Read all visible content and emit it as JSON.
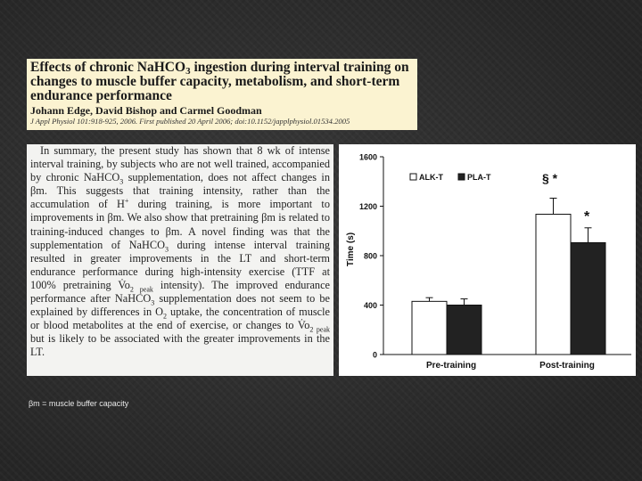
{
  "header": {
    "title_part1": "Effects of chronic NaHCO",
    "title_sub": "3",
    "title_part2": " ingestion during interval training on changes to muscle buffer capacity, metabolism, and short-term endurance performance",
    "authors": "Johann Edge, David Bishop and Carmel Goodman",
    "citation": "J Appl Physiol 101:918-925, 2006. First published 20 April 2006; doi:10.1152/japplphysiol.01534.2005"
  },
  "summary": {
    "s1": "In summary, the present study has shown that 8 wk of intense interval training, by subjects who are not well trained, accompanied by chronic NaHCO",
    "sub3a": "3",
    "s2": " supplementation, does not affect changes in βm. This suggests that training intensity, rather than the accumulation of H",
    "sup_plus": "+",
    "s3": " during training, is more important to improvements in βm. We also show that pretraining βm is related to training-induced changes to βm. A novel finding was that the supplementation of NaHCO",
    "sub3b": "3",
    "s4": " during intense interval training resulted in greater improvements in the LT and short-term endurance performance during high-intensity exercise (TTF at 100% pretraining V̇o",
    "sub_peak1": "2 peak",
    "s5": " intensity). The improved endurance performance after NaHCO",
    "sub3c": "3",
    "s6": " supplementation does not seem to be explained by differences in O",
    "sub2": "2",
    "s7": " uptake, the concentration of muscle or blood metabolites at the end of exercise, or changes to V̇o",
    "sub_peak2": "2 peak",
    "s8": " but is likely to be associated with the greater improvements in the LT."
  },
  "footnote": "βm = muscle buffer capacity",
  "colors": {
    "alk_fill": "#ffffff",
    "pla_fill": "#222222"
  },
  "chart_data": {
    "type": "bar",
    "ylabel": "Time (s)",
    "ylim": [
      0,
      1600
    ],
    "yticks": [
      "0",
      "400",
      "800",
      "1200",
      "1600"
    ],
    "categories": [
      "Pre-training",
      "Post-training"
    ],
    "series": [
      {
        "name": "ALK-T",
        "values": [
          430,
          1135
        ],
        "errors": [
          30,
          130
        ]
      },
      {
        "name": "PLA-T",
        "values": [
          400,
          905
        ],
        "errors": [
          50,
          120
        ]
      }
    ],
    "annotations": {
      "alk_post": "§ *",
      "pla_post": "*"
    },
    "legend": [
      "ALK-T",
      "PLA-T"
    ],
    "legend_position": "top-right"
  }
}
